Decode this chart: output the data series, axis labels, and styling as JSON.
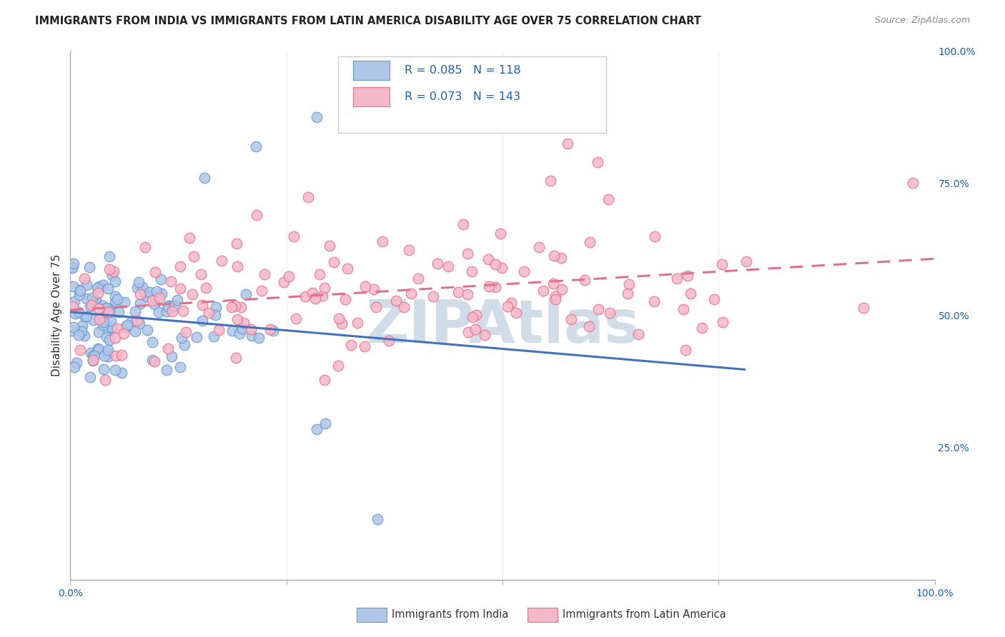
{
  "title": "IMMIGRANTS FROM INDIA VS IMMIGRANTS FROM LATIN AMERICA DISABILITY AGE OVER 75 CORRELATION CHART",
  "source": "Source: ZipAtlas.com",
  "ylabel": "Disability Age Over 75",
  "series1_label": "Immigrants from India",
  "series2_label": "Immigrants from Latin America",
  "series1_R": "0.085",
  "series1_N": "118",
  "series2_R": "0.073",
  "series2_N": "143",
  "series1_color": "#aec6e8",
  "series2_color": "#f5b8c8",
  "series1_edge_color": "#6699cc",
  "series2_edge_color": "#e87090",
  "series1_line_color": "#4472b8",
  "series2_line_color": "#e07090",
  "legend_text_color": "#1a5fb4",
  "title_fontsize": 10.5,
  "axis_label_fontsize": 11,
  "tick_fontsize": 10,
  "background_color": "#ffffff",
  "grid_color": "#d8d8d8",
  "watermark": "ZIPAtlas",
  "watermark_color": "#d0dce8"
}
